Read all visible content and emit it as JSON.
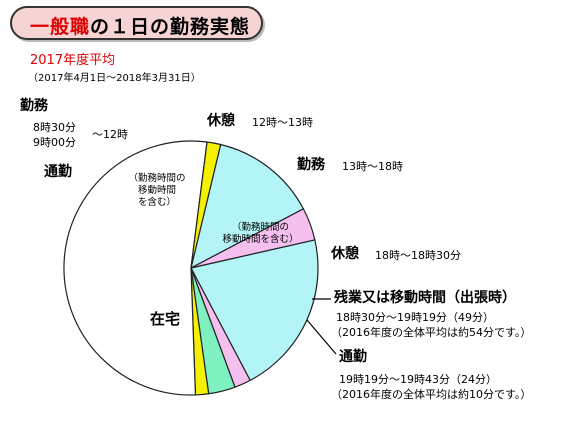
{
  "header": {
    "title_prefix": "一般職",
    "title_suffix": "の１日の勤務実態",
    "subtitle": "2017年度平均",
    "period": "（2017年4月1日～2018年3月31日）"
  },
  "labels": {
    "work_am": {
      "title": "勤務",
      "line1": "8時30分",
      "line2": "9時00分",
      "end": "～12時"
    },
    "commute_am": {
      "title": "通勤"
    },
    "inner_am": [
      "（勤務時間の",
      "移動時間",
      "を含む）"
    ],
    "inner_pm": [
      "（勤務時間の",
      "移動時間を含む）"
    ],
    "rest_noon": {
      "title": "休憩",
      "time": "12時～13時"
    },
    "work_pm": {
      "title": "勤務",
      "time": "13時～18時"
    },
    "rest_eve": {
      "title": "休憩",
      "time": "18時～18時30分"
    },
    "overtime": {
      "title": "残業又は移動時間（出張時）",
      "time": "18時30分～19時19分（49分）",
      "note": "（2016年度の全体平均は約54分です。）"
    },
    "commute_pm": {
      "title": "通勤",
      "time": "19時19分～19時43分（24分）",
      "note": "（2016年度の全体平均は約10分です。）"
    },
    "home": {
      "title": "在宅"
    }
  },
  "chart_data": {
    "type": "pie",
    "title": "一般職の１日の勤務実態",
    "subtitle": "2017年度平均",
    "unit": "minutes",
    "slices": [
      {
        "label": "勤務 (8時30分/9時00分～12時)",
        "start": "8:45",
        "end": "12:00",
        "minutes": 195,
        "color": "#b3f5f7"
      },
      {
        "label": "休憩 (12時～13時)",
        "start": "12:00",
        "end": "13:00",
        "minutes": 60,
        "color": "#f5c0f0"
      },
      {
        "label": "勤務 (13時～18時)",
        "start": "13:00",
        "end": "18:00",
        "minutes": 300,
        "color": "#b3f5f7"
      },
      {
        "label": "休憩 (18時～18時30分)",
        "start": "18:00",
        "end": "18:30",
        "minutes": 30,
        "color": "#f5c0f0"
      },
      {
        "label": "残業又は移動時間（出張時）",
        "start": "18:30",
        "end": "19:19",
        "minutes": 49,
        "color": "#7ff0c0"
      },
      {
        "label": "通勤 (19時19分～19時43分)",
        "start": "19:19",
        "end": "19:43",
        "minutes": 24,
        "color": "#f5f000"
      },
      {
        "label": "在宅",
        "start": "19:43",
        "end": "8:20",
        "minutes": 757,
        "color": "#ffffff"
      },
      {
        "label": "通勤 (朝)",
        "start": "8:20",
        "end": "8:45",
        "minutes": 25,
        "color": "#f5f000"
      }
    ],
    "clock_offset_hours": 7.85
  }
}
